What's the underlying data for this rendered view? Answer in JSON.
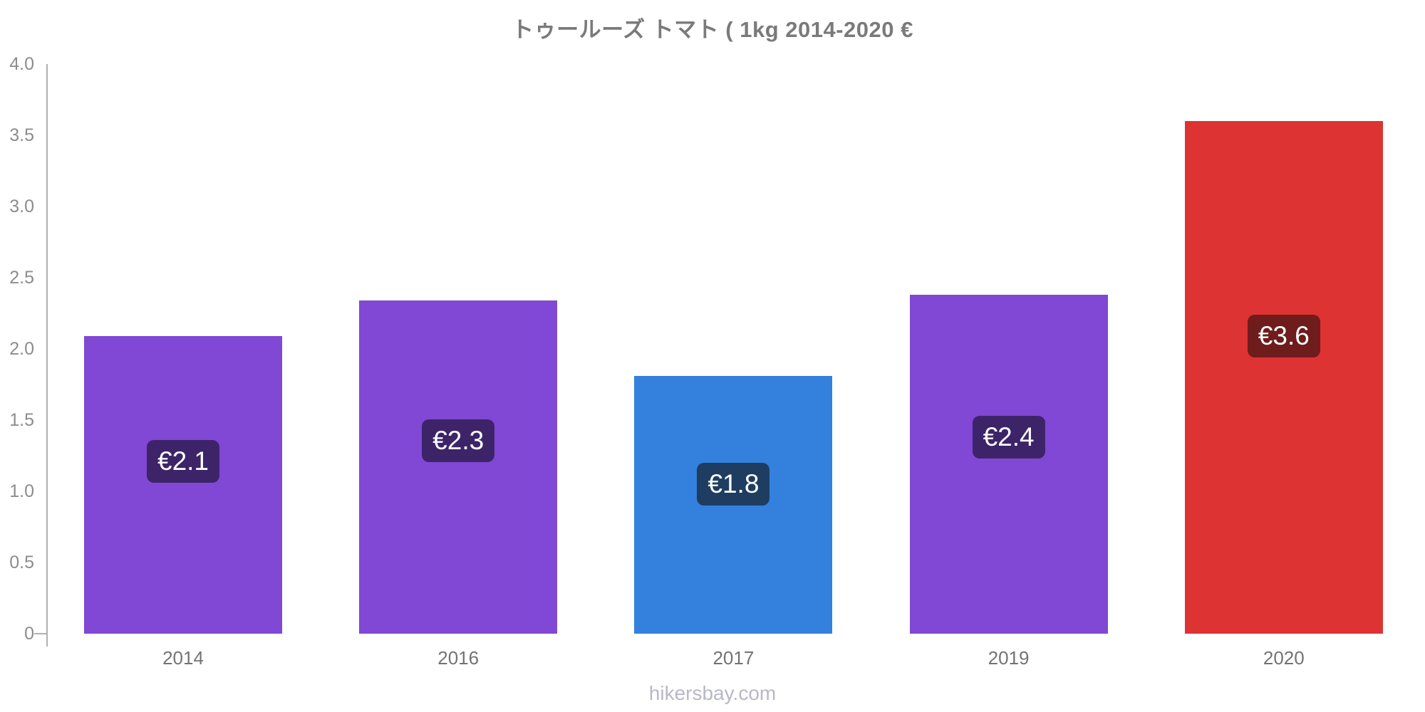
{
  "title": "トゥールーズ トマト ( 1kg 2014-2020 €",
  "footer": "hikersbay.com",
  "colors": {
    "background": "#ffffff",
    "title_text": "#7a7a7a",
    "axis_line": "#b0b0b0",
    "y_tick_text": "#8c8c8c",
    "x_tick_text": "#737373",
    "footer_text": "#b8b8c6",
    "badge_text": "#ffffff",
    "bar_purple": "#8048d4",
    "bar_blue": "#3381dd",
    "bar_red": "#de3333",
    "badge_dark_purple": "#3d2469",
    "badge_dark_navy": "#1f3d61",
    "badge_dark_red": "#6e1c1c"
  },
  "chart_data": {
    "type": "bar",
    "title": "トゥールーズ トマト ( 1kg 2014-2020 €",
    "xlabel": "",
    "ylabel": "",
    "currency": "€",
    "categories": [
      "2014",
      "2016",
      "2017",
      "2019",
      "2020"
    ],
    "values": [
      2.09,
      2.34,
      1.81,
      2.38,
      3.6
    ],
    "bar_labels": [
      "€2.1",
      "€2.3",
      "€1.8",
      "€2.4",
      "€3.6"
    ],
    "bar_colors": [
      "#8048d4",
      "#8048d4",
      "#3381dd",
      "#8048d4",
      "#de3333"
    ],
    "badge_colors": [
      "#3d2469",
      "#3d2469",
      "#1f3d61",
      "#3d2469",
      "#6e1c1c"
    ],
    "ylim": [
      0,
      4.0
    ],
    "ytick_labels": [
      "4.0",
      "3.5",
      "3.0",
      "2.5",
      "2.0",
      "1.5",
      "1.0",
      "0.5",
      "0"
    ],
    "ytick_values": [
      4.0,
      3.5,
      3.0,
      2.5,
      2.0,
      1.5,
      1.0,
      0.5,
      0
    ],
    "grid": false,
    "legend": "none",
    "footer": "hikersbay.com"
  }
}
